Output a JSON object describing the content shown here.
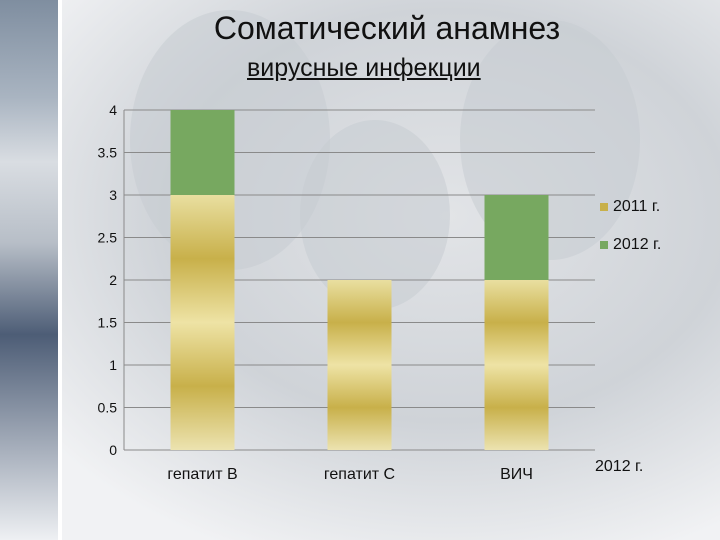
{
  "title": "Соматический анамнез",
  "subtitle": "вирусные инфекции",
  "colors": {
    "s2011": "#c8b04a",
    "s2012": "#77a860"
  },
  "chart_data": {
    "type": "bar",
    "stacked": true,
    "categories": [
      "гепатит В",
      "гепатит С",
      "ВИЧ"
    ],
    "series": [
      {
        "name": "2011 г.",
        "values": [
          3,
          2,
          2
        ]
      },
      {
        "name": "2012 г.",
        "values": [
          1,
          0,
          1
        ]
      }
    ],
    "ylim": [
      0,
      4
    ],
    "yticks": [
      "0",
      "0.5",
      "1",
      "1.5",
      "2",
      "2.5",
      "3",
      "3.5",
      "4"
    ],
    "grid": true,
    "legend": "right",
    "stray_label": "2012 г."
  }
}
